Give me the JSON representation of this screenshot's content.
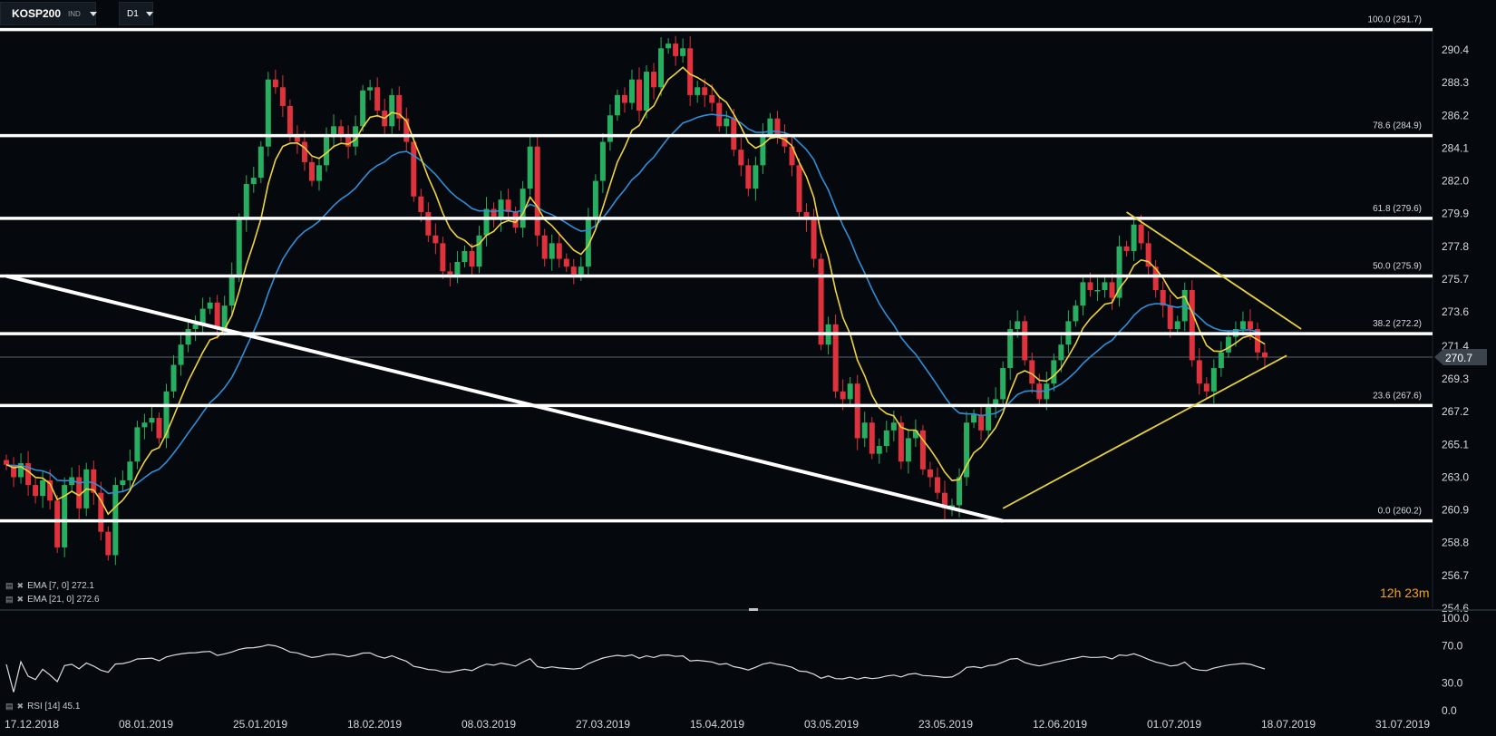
{
  "toolbar": {
    "symbol": "KOSP200",
    "symbol_type": "IND",
    "timeframe": "D1"
  },
  "price_scale": [
    "290.4",
    "288.3",
    "286.2",
    "284.1",
    "282.0",
    "279.9",
    "277.8",
    "275.7",
    "273.6",
    "271.4",
    "269.3",
    "267.2",
    "265.1",
    "263.0",
    "260.9",
    "258.8",
    "256.7",
    "254.6"
  ],
  "current_price": "270.7",
  "fib_labels": [
    "100.0 (291.7)",
    "78.6 (284.9)",
    "61.8 (279.6)",
    "50.0 (275.9)",
    "38.2 (272.2)",
    "23.6 (267.6)",
    "0.0 (260.2)"
  ],
  "date_labels": [
    "17.12.2018",
    "08.01.2019",
    "25.01.2019",
    "18.02.2019",
    "08.03.2019",
    "27.03.2019",
    "15.04.2019",
    "03.05.2019",
    "23.05.2019",
    "12.06.2019",
    "01.07.2019",
    "18.07.2019",
    "31.07.2019"
  ],
  "rsi_scale": [
    "100.0",
    "70.0",
    "30.0",
    "0.0"
  ],
  "legend": {
    "ema_fast": "EMA [7, 0] 272.1",
    "ema_slow": "EMA [21, 0] 272.6",
    "rsi": "RSI [14] 45.1"
  },
  "timer": {
    "hours": "12",
    "h_unit": "h",
    "minutes": "23",
    "m_unit": "m"
  },
  "colors": {
    "background": "#05080c",
    "bull": "#27ae60",
    "bear": "#e0323c",
    "ema_fast": "#f0d33a",
    "ema_slow": "#2f8fd8",
    "fib": "#ffffff",
    "trendline_yellow": "#e8d23a",
    "rsi_line": "#dcdcdc"
  },
  "chart_data": {
    "type": "candlestick",
    "price_axis_range": [
      254.6,
      292.6
    ],
    "rsi_axis_range": [
      0,
      100
    ],
    "fib_levels": [
      {
        "ratio": "100.0",
        "price": 291.7
      },
      {
        "ratio": "78.6",
        "price": 284.9
      },
      {
        "ratio": "61.8",
        "price": 279.6
      },
      {
        "ratio": "50.0",
        "price": 275.9
      },
      {
        "ratio": "38.2",
        "price": 272.2
      },
      {
        "ratio": "23.6",
        "price": 267.6
      },
      {
        "ratio": "0.0",
        "price": 260.2
      }
    ],
    "closes": [
      263.8,
      263.0,
      263.9,
      262.5,
      261.8,
      262.8,
      261.5,
      258.5,
      262.5,
      263.0,
      261.0,
      263.5,
      262.0,
      259.5,
      258.0,
      262.5,
      262.8,
      264.0,
      266.2,
      266.5,
      266.8,
      265.5,
      268.5,
      270.2,
      271.5,
      272.5,
      272.8,
      273.8,
      274.2,
      272.5,
      274.0,
      276.0,
      279.5,
      281.8,
      282.2,
      284.2,
      288.5,
      288.0,
      286.8,
      285.0,
      284.5,
      283.2,
      282.0,
      283.0,
      284.8,
      285.5,
      285.0,
      284.2,
      285.5,
      287.8,
      288.0,
      286.5,
      285.5,
      287.5,
      286.0,
      284.5,
      281.0,
      280.0,
      278.5,
      278.0,
      276.2,
      276.0,
      276.8,
      277.5,
      276.5,
      278.5,
      280.2,
      279.5,
      280.8,
      280.0,
      279.0,
      281.5,
      284.2,
      278.5,
      277.0,
      278.0,
      277.0,
      276.5,
      276.0,
      276.5,
      279.5,
      282.0,
      284.5,
      286.2,
      287.5,
      287.0,
      288.5,
      286.5,
      289.0,
      288.0,
      290.5,
      290.8,
      290.0,
      290.5,
      287.5,
      288.0,
      287.5,
      287.0,
      285.5,
      286.0,
      284.0,
      283.0,
      281.5,
      283.0,
      285.0,
      286.0,
      285.0,
      284.2,
      283.0,
      280.0,
      279.5,
      277.0,
      271.5,
      272.8,
      268.5,
      268.0,
      269.0,
      265.5,
      266.5,
      264.5,
      265.0,
      266.0,
      266.5,
      264.0,
      265.5,
      266.0,
      263.5,
      263.0,
      262.0,
      261.0,
      261.2,
      263.0,
      266.5,
      267.0,
      266.0,
      267.5,
      268.0,
      270.0,
      272.5,
      273.0,
      270.5,
      269.0,
      268.0,
      269.0,
      270.5,
      271.5,
      273.0,
      274.0,
      275.5,
      275.0,
      275.0,
      275.5,
      274.5,
      277.8,
      277.5,
      279.2,
      278.0,
      276.5,
      275.0,
      274.0,
      272.5,
      273.0,
      275.0,
      270.5,
      269.0,
      268.5,
      270.0,
      271.0,
      272.0,
      272.5,
      273.0,
      272.5,
      271.0,
      270.7
    ],
    "ema_fast_last": 272.1,
    "ema_slow_last": 272.6,
    "rsi_last": 45.1,
    "rsi_levels": [
      70.0,
      30.0
    ],
    "trendlines": [
      {
        "name": "descending support",
        "from": [
          "17.12.2018",
          275.9
        ],
        "to": [
          "27.05.2019",
          260.2
        ]
      },
      {
        "name": "rising support",
        "from": [
          "27.05.2019",
          261.0
        ],
        "to": [
          "22.07.2019",
          270.8
        ]
      },
      {
        "name": "falling resistance",
        "from": [
          "26.06.2019",
          280.0
        ],
        "to": [
          "23.07.2019",
          272.5
        ]
      }
    ]
  }
}
